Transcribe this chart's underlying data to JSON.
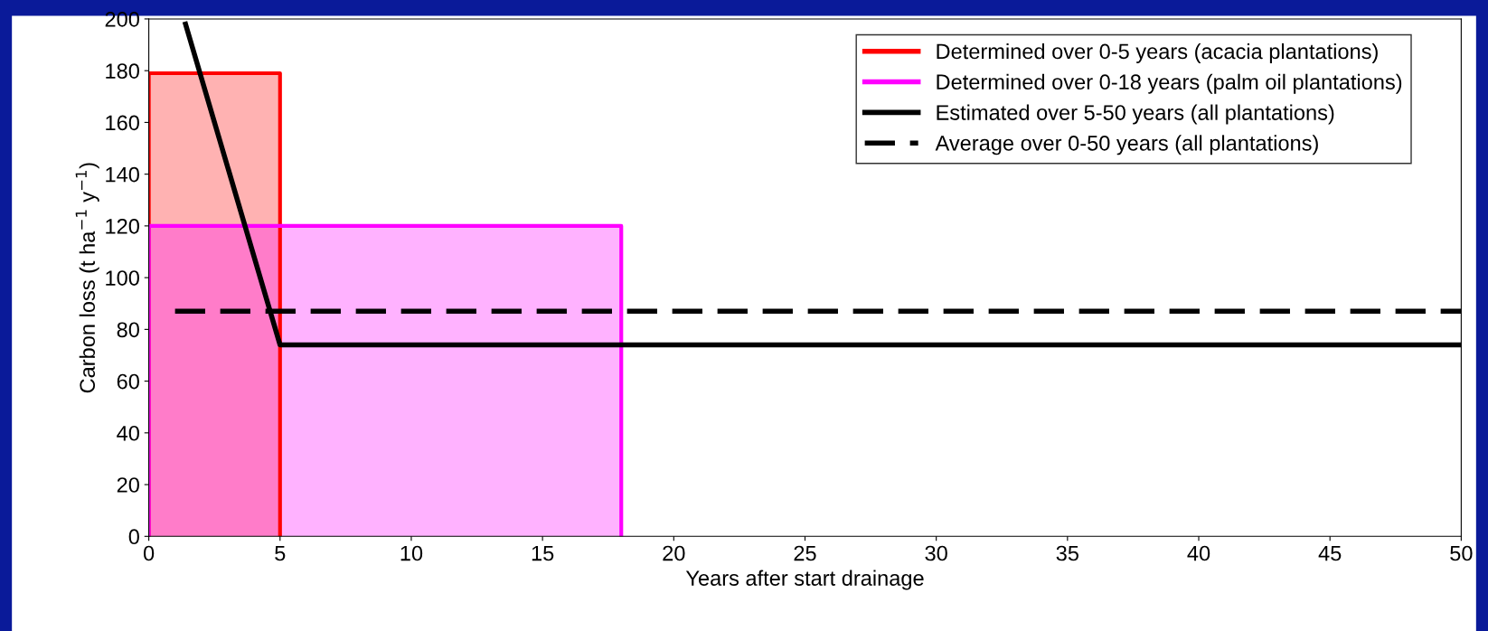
{
  "chart_data": {
    "type": "line",
    "xlabel": "Years after start drainage",
    "ylabel": "Carbon loss (t ha$^{−1}$ y$^{−1}$)",
    "xlim": [
      0,
      50
    ],
    "ylim": [
      0,
      200
    ],
    "xticks": [
      0,
      5,
      10,
      15,
      20,
      25,
      30,
      35,
      40,
      45,
      50
    ],
    "yticks": [
      0,
      20,
      40,
      60,
      80,
      100,
      120,
      140,
      160,
      180,
      200
    ],
    "grid": false,
    "legend": "top right",
    "series": [
      {
        "name": "Determined over 0-5 years (acacia plantations)",
        "type": "area",
        "color": "#ff0000",
        "x": [
          0,
          5
        ],
        "values": [
          179,
          179
        ]
      },
      {
        "name": "Determined over 0-18 years (palm oil plantations)",
        "type": "area",
        "color": "#ff00ff",
        "x": [
          0,
          18
        ],
        "values": [
          120,
          120
        ]
      },
      {
        "name": "Estimated over 5-50 years (all plantations)",
        "color": "#000000",
        "line_style": "solid",
        "x": [
          1.4,
          5,
          50
        ],
        "values": [
          198,
          74,
          74
        ]
      },
      {
        "name": "Average over 0-50 years (all plantations)",
        "color": "#000000",
        "line_style": "dashed",
        "x": [
          1,
          50
        ],
        "values": [
          87,
          87
        ]
      }
    ]
  }
}
